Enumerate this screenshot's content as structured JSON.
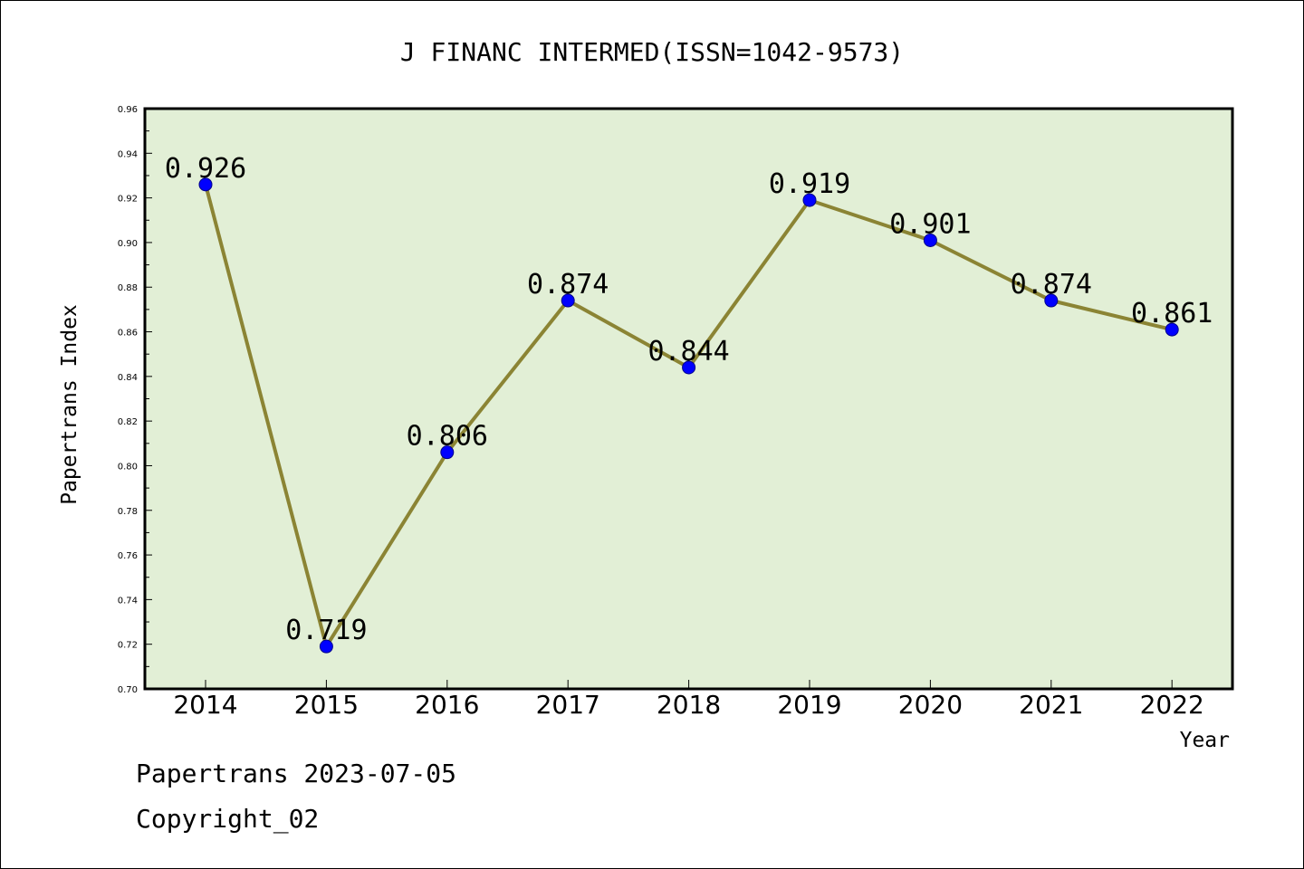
{
  "chart_data": {
    "type": "line",
    "title": "J FINANC INTERMED(ISSN=1042-9573)",
    "xlabel": "Year",
    "ylabel": "Papertrans Index",
    "categories": [
      "2014",
      "2015",
      "2016",
      "2017",
      "2018",
      "2019",
      "2020",
      "2021",
      "2022"
    ],
    "series": [
      {
        "values": [
          0.926,
          0.719,
          0.806,
          0.874,
          0.844,
          0.919,
          0.901,
          0.874,
          0.861
        ],
        "labels": [
          "0.926",
          "0.719",
          "0.806",
          "0.874",
          "0.844",
          "0.919",
          "0.901",
          "0.874",
          "0.861"
        ]
      }
    ],
    "ylim": [
      0.7,
      0.96
    ],
    "yticks": [
      "0.70",
      "0.72",
      "0.74",
      "0.76",
      "0.78",
      "0.80",
      "0.82",
      "0.84",
      "0.86",
      "0.88",
      "0.90",
      "0.92",
      "0.94",
      "0.96"
    ],
    "grid": false,
    "colors": {
      "plot_background": "#e2efd6",
      "line": "#8b8434",
      "marker": "#0000ff",
      "frame": "#000000"
    }
  },
  "footer": {
    "line1": "Papertrans 2023-07-05",
    "line2": "Copyright_02"
  }
}
